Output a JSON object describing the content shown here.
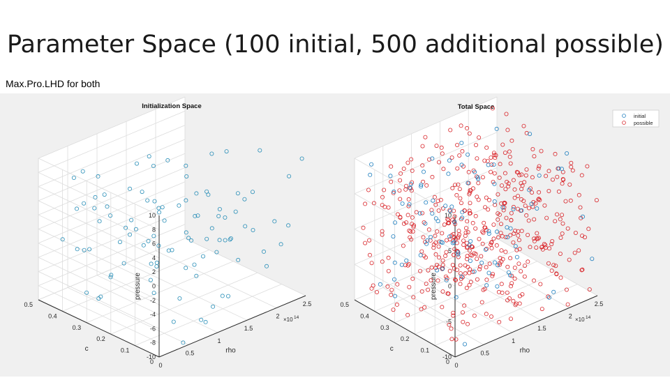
{
  "slide": {
    "title": "Parameter Space (100 initial, 500 additional possible)",
    "subtitle": "Max.Pro.LHD for both"
  },
  "colors": {
    "initial": "#1f7fbf",
    "initial_left": "#2a8fb8",
    "possible": "#d9262b"
  },
  "chart_data": [
    {
      "type": "scatter",
      "title": "Initialization Space",
      "xlabel": "rho",
      "ylabel": "c",
      "zlabel": "pressure",
      "x_exponent": "×10",
      "x_exponent_power": "14",
      "xlim": [
        0,
        2.5
      ],
      "ylim": [
        0,
        0.5
      ],
      "zlim": [
        -10,
        10
      ],
      "x_ticks": [
        "0",
        "0.5",
        "1",
        "1.5",
        "2",
        "2.5"
      ],
      "y_ticks": [
        "0",
        "0.1",
        "0.2",
        "0.3",
        "0.4",
        "0.5"
      ],
      "z_ticks": [
        "-10",
        "-8",
        "-6",
        "-4",
        "-2",
        "0",
        "2",
        "4",
        "6",
        "8",
        "10"
      ],
      "grid": true,
      "series": [
        {
          "points": 100
        }
      ]
    },
    {
      "type": "scatter",
      "title": "Total Space",
      "xlabel": "rho",
      "ylabel": "c",
      "zlabel": "pressure",
      "x_exponent": "×10",
      "x_exponent_power": "14",
      "xlim": [
        0,
        2.5
      ],
      "ylim": [
        0,
        0.5
      ],
      "zlim": [
        -10,
        10
      ],
      "x_ticks": [
        "0",
        "0.5",
        "1",
        "1.5",
        "2",
        "2.5"
      ],
      "y_ticks": [
        "0",
        "0.1",
        "0.2",
        "0.3",
        "0.4",
        "0.5"
      ],
      "z_ticks": [
        "-10",
        "-5",
        "0",
        "5",
        "10"
      ],
      "grid": true,
      "legend_position": "top-right",
      "series": [
        {
          "name": "initial",
          "points": 100
        },
        {
          "name": "possible",
          "points": 500
        }
      ]
    }
  ]
}
